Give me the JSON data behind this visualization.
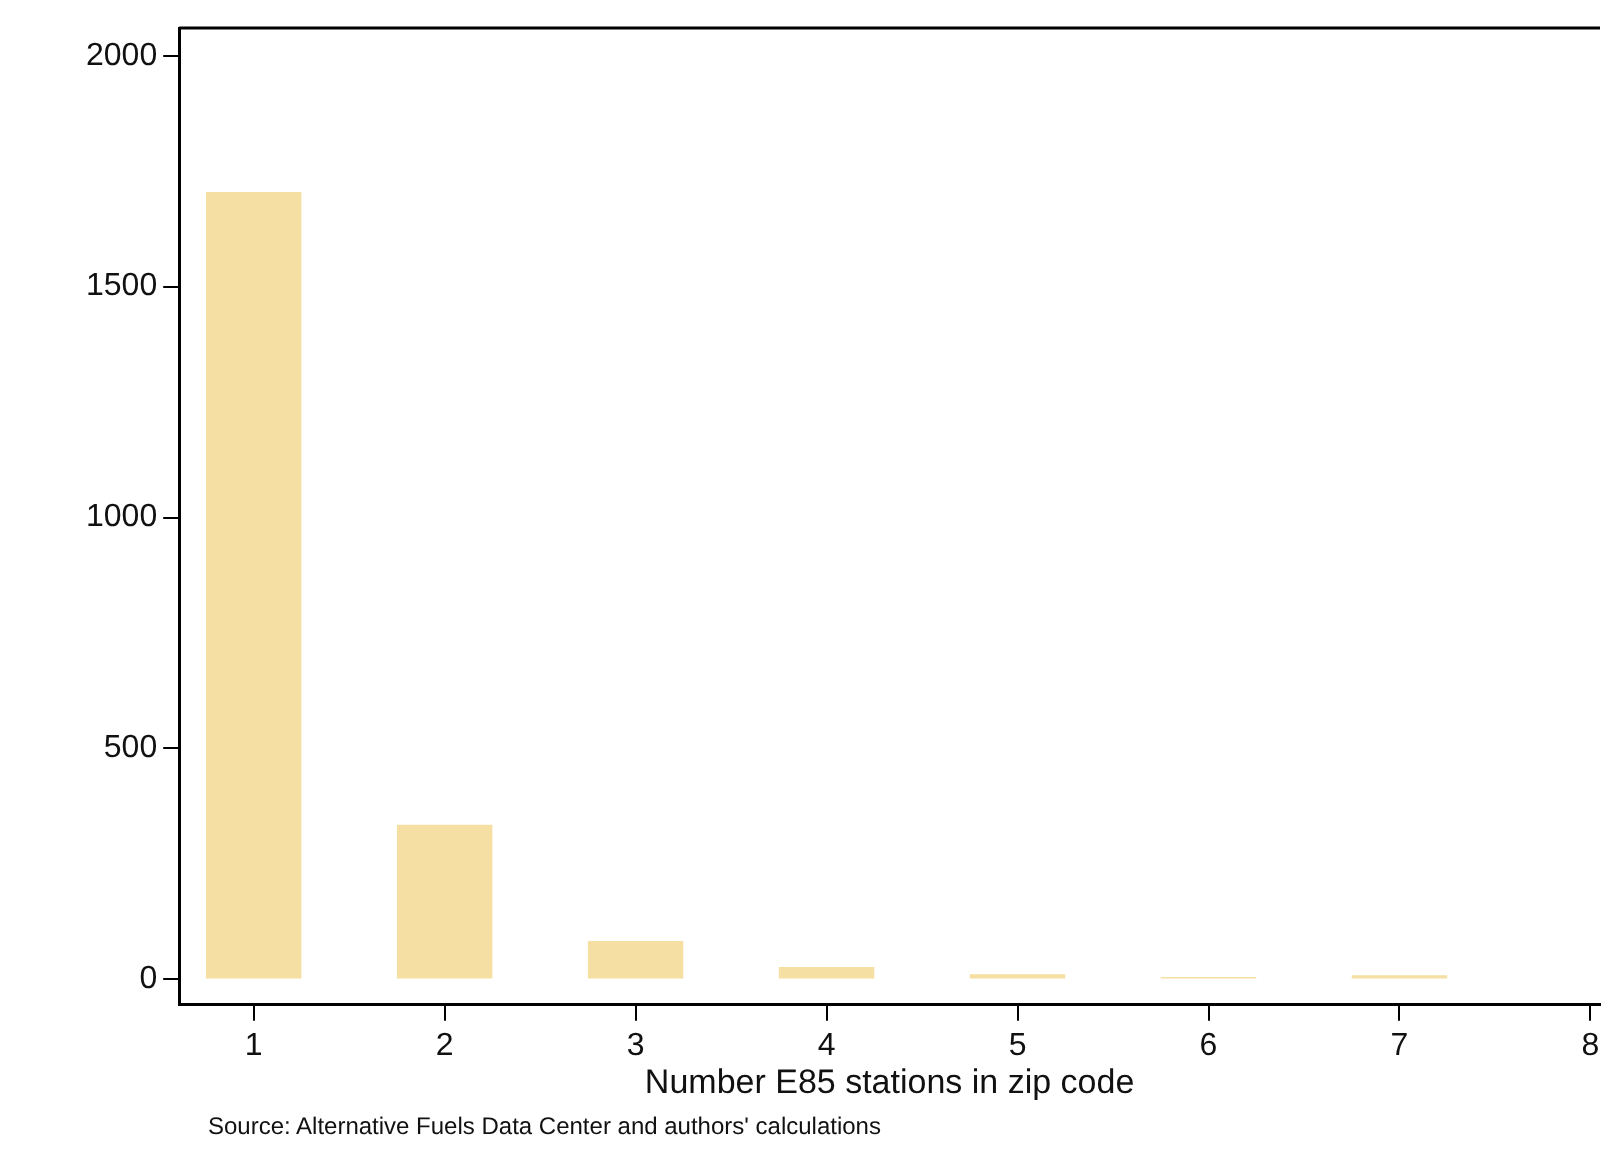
{
  "chart_data": {
    "type": "bar",
    "xlabel": "Number E85 stations in zip code",
    "x": [
      1,
      2,
      3,
      4,
      5,
      6,
      7
    ],
    "values": [
      1705,
      335,
      83,
      27,
      11,
      5,
      9
    ],
    "color": "#f5dfa2",
    "xlim": [
      0.61,
      8.05
    ],
    "xticks": [
      1,
      2,
      3,
      4,
      5,
      6,
      7,
      8
    ],
    "ylim": [
      -55,
      2060
    ],
    "yticks": [
      0,
      500,
      1000,
      1500,
      2000
    ],
    "grid": false,
    "legend": false,
    "annotations": [
      "Source: Alternative Fuels Data Center and authors' calculations"
    ]
  }
}
